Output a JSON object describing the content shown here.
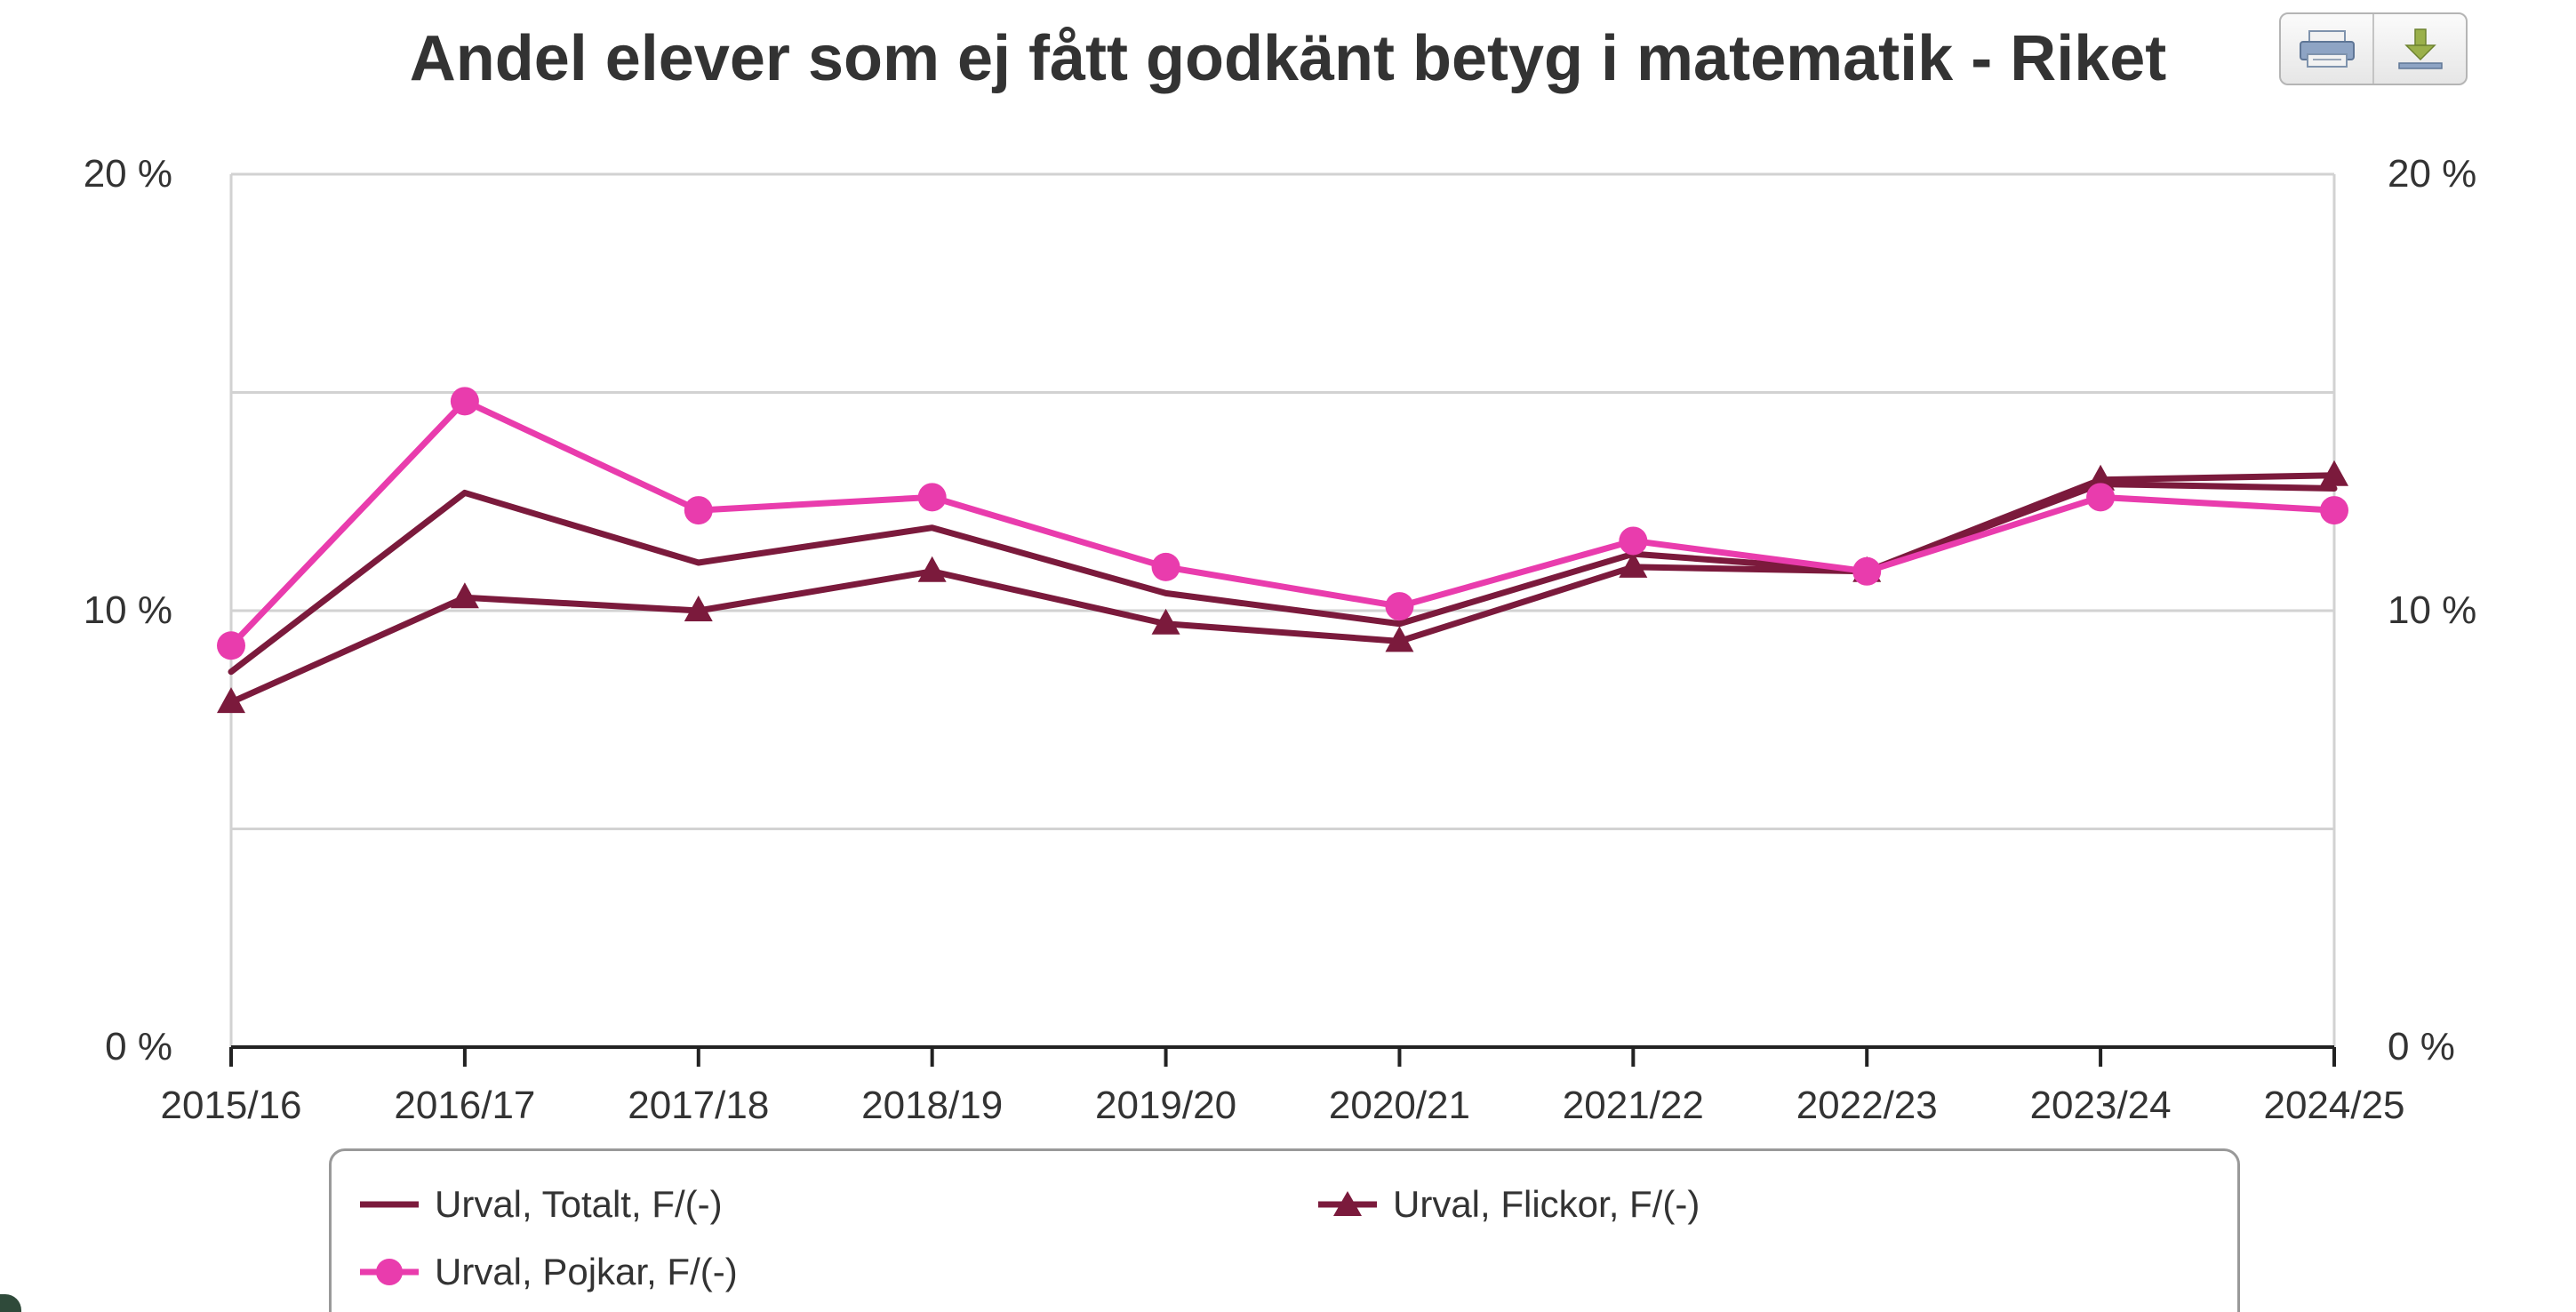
{
  "chart_data": {
    "type": "line",
    "title": "Andel elever som ej fått godkänt betyg i matematik - Riket",
    "categories": [
      "2015/16",
      "2016/17",
      "2017/18",
      "2018/19",
      "2019/20",
      "2020/21",
      "2021/22",
      "2022/23",
      "2023/24",
      "2024/25"
    ],
    "y_unit": "%",
    "ylim": [
      0,
      20
    ],
    "y_ticks": [
      {
        "value": 0,
        "label": "0 %"
      },
      {
        "value": 10,
        "label": "10 %"
      },
      {
        "value": 20,
        "label": "20 %"
      }
    ],
    "gridlines": [
      0,
      5,
      10,
      15,
      20
    ],
    "grid": true,
    "dual_y_axis": true,
    "legend_position": "bottom",
    "series": [
      {
        "name": "Urval, Totalt, F/(-)",
        "color": "#7b1a3c",
        "marker": "none",
        "values": [
          8.6,
          12.7,
          11.1,
          11.9,
          10.4,
          9.7,
          11.3,
          10.9,
          12.9,
          12.8
        ]
      },
      {
        "name": "Urval, Flickor, F/(-)",
        "color": "#7b1a3c",
        "marker": "triangle",
        "values": [
          7.9,
          10.3,
          10.0,
          10.9,
          9.7,
          9.3,
          11.0,
          10.9,
          13.0,
          13.1
        ]
      },
      {
        "name": "Urval, Pojkar, F/(-)",
        "color": "#e93cad",
        "marker": "circle",
        "values": [
          9.2,
          14.8,
          12.3,
          12.6,
          11.0,
          10.1,
          11.6,
          10.9,
          12.6,
          12.3
        ]
      }
    ]
  },
  "toolbar": {
    "print_icon": "print-icon",
    "download_icon": "download-icon"
  }
}
